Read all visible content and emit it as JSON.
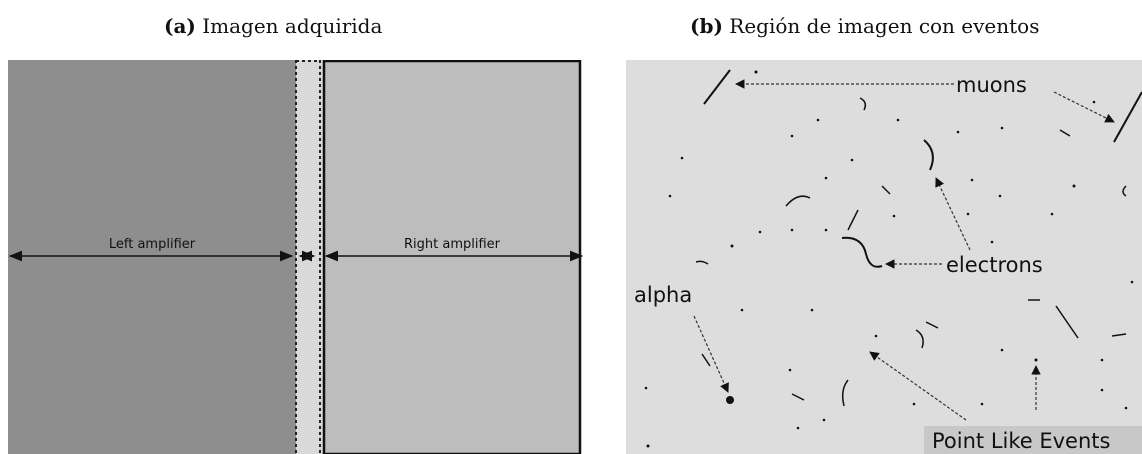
{
  "captions": {
    "a": {
      "tag": "(a)",
      "text": "Imagen adquirida"
    },
    "b": {
      "tag": "(b)",
      "text": "Región de imagen con eventos"
    }
  },
  "panel_a": {
    "left_label": "Left amplifier",
    "right_label": "Right amplifier",
    "colors": {
      "left": "#8e8e8e",
      "right": "#bdbdbd",
      "gap": "#d9d9d9"
    }
  },
  "panel_b": {
    "labels": {
      "muons": "muons",
      "electrons": "electrons",
      "alpha": "alpha",
      "point": "Point Like Events"
    },
    "colors": {
      "background": "#dddddd",
      "tracks": "#111111"
    }
  }
}
